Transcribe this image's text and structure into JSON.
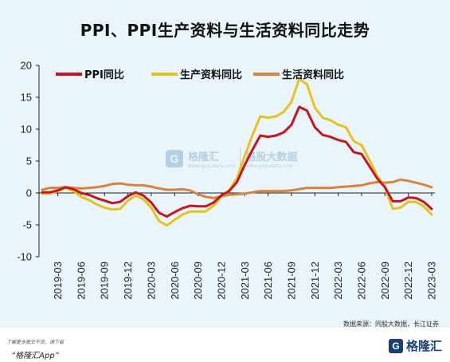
{
  "chart_data": {
    "type": "line",
    "title": "PPI、PPI生产资料与生活资料同比走势",
    "ylim": [
      -10,
      20
    ],
    "y_ticks": [
      "20",
      "15",
      "10",
      "5",
      "0",
      "-5",
      "-10"
    ],
    "x_tick_labels": [
      "2019-03",
      "2019-06",
      "2019-09",
      "2019-12",
      "2020-03",
      "2020-06",
      "2020-09",
      "2020-12",
      "2021-03",
      "2021-06",
      "2021-09",
      "2021-12",
      "2022-03",
      "2022-06",
      "2022-09",
      "2022-12",
      "2023-03"
    ],
    "x": [
      "2019-01",
      "2019-02",
      "2019-03",
      "2019-04",
      "2019-05",
      "2019-06",
      "2019-07",
      "2019-08",
      "2019-09",
      "2019-10",
      "2019-11",
      "2019-12",
      "2020-01",
      "2020-02",
      "2020-03",
      "2020-04",
      "2020-05",
      "2020-06",
      "2020-07",
      "2020-08",
      "2020-09",
      "2020-10",
      "2020-11",
      "2020-12",
      "2021-01",
      "2021-02",
      "2021-03",
      "2021-04",
      "2021-05",
      "2021-06",
      "2021-07",
      "2021-08",
      "2021-09",
      "2021-10",
      "2021-11",
      "2021-12",
      "2022-01",
      "2022-02",
      "2022-03",
      "2022-04",
      "2022-05",
      "2022-06",
      "2022-07",
      "2022-08",
      "2022-09",
      "2022-10",
      "2022-11",
      "2022-12",
      "2023-01",
      "2023-02",
      "2023-03"
    ],
    "series": [
      {
        "name": "PPI同比",
        "color": "#c8141e",
        "values": [
          0.1,
          0.1,
          0.4,
          0.9,
          0.6,
          0.0,
          -0.3,
          -0.8,
          -1.2,
          -1.6,
          -1.4,
          -0.5,
          0.1,
          -0.4,
          -1.5,
          -3.1,
          -3.7,
          -3.0,
          -2.4,
          -2.0,
          -2.1,
          -2.1,
          -1.5,
          -0.4,
          0.3,
          1.7,
          4.4,
          6.8,
          9.0,
          8.8,
          9.0,
          9.5,
          10.7,
          13.5,
          12.9,
          10.3,
          9.1,
          8.8,
          8.3,
          8.0,
          6.4,
          6.1,
          4.2,
          2.3,
          0.9,
          -1.3,
          -1.3,
          -0.7,
          -0.8,
          -1.4,
          -2.5
        ]
      },
      {
        "name": "生产资料同比",
        "color": "#e6c21e",
        "values": [
          -0.1,
          -0.1,
          0.3,
          0.8,
          0.3,
          -0.6,
          -1.1,
          -1.8,
          -2.3,
          -2.6,
          -2.5,
          -1.2,
          -0.4,
          -1.0,
          -2.3,
          -4.4,
          -5.1,
          -4.2,
          -3.4,
          -2.9,
          -2.9,
          -2.9,
          -2.0,
          -0.6,
          0.4,
          2.3,
          5.8,
          9.1,
          12.0,
          11.8,
          12.0,
          12.7,
          14.3,
          17.9,
          17.0,
          13.4,
          11.8,
          11.4,
          10.7,
          10.3,
          8.1,
          7.5,
          5.2,
          2.7,
          0.9,
          -2.5,
          -2.3,
          -1.4,
          -1.4,
          -2.1,
          -3.4
        ]
      },
      {
        "name": "生活资料同比",
        "color": "#d8843a",
        "values": [
          0.5,
          0.8,
          0.8,
          0.9,
          0.8,
          0.7,
          0.8,
          0.9,
          1.1,
          1.4,
          1.5,
          1.3,
          1.2,
          1.2,
          1.0,
          0.7,
          0.5,
          0.5,
          0.6,
          0.4,
          -0.2,
          -0.6,
          -0.8,
          -0.5,
          -0.3,
          -0.2,
          -0.1,
          0.1,
          0.3,
          0.3,
          0.3,
          0.3,
          0.4,
          0.6,
          0.8,
          0.8,
          0.8,
          0.8,
          0.9,
          1.0,
          1.1,
          1.2,
          1.5,
          1.7,
          1.6,
          1.7,
          2.1,
          1.9,
          1.6,
          1.3,
          0.9
        ]
      }
    ],
    "legend": {
      "placement": "top"
    },
    "grid": false
  },
  "watermark": {
    "brand": "格隆汇",
    "site_text": "格股大数据",
    "url_text": "www.gogudata.com"
  },
  "source_text": "数据来源：同股大数据，长江证券",
  "footer": {
    "note": "了解更多图文干货，请下载",
    "app": "“格隆汇App”",
    "logo_mark": "G",
    "logo_text": "格隆汇"
  }
}
